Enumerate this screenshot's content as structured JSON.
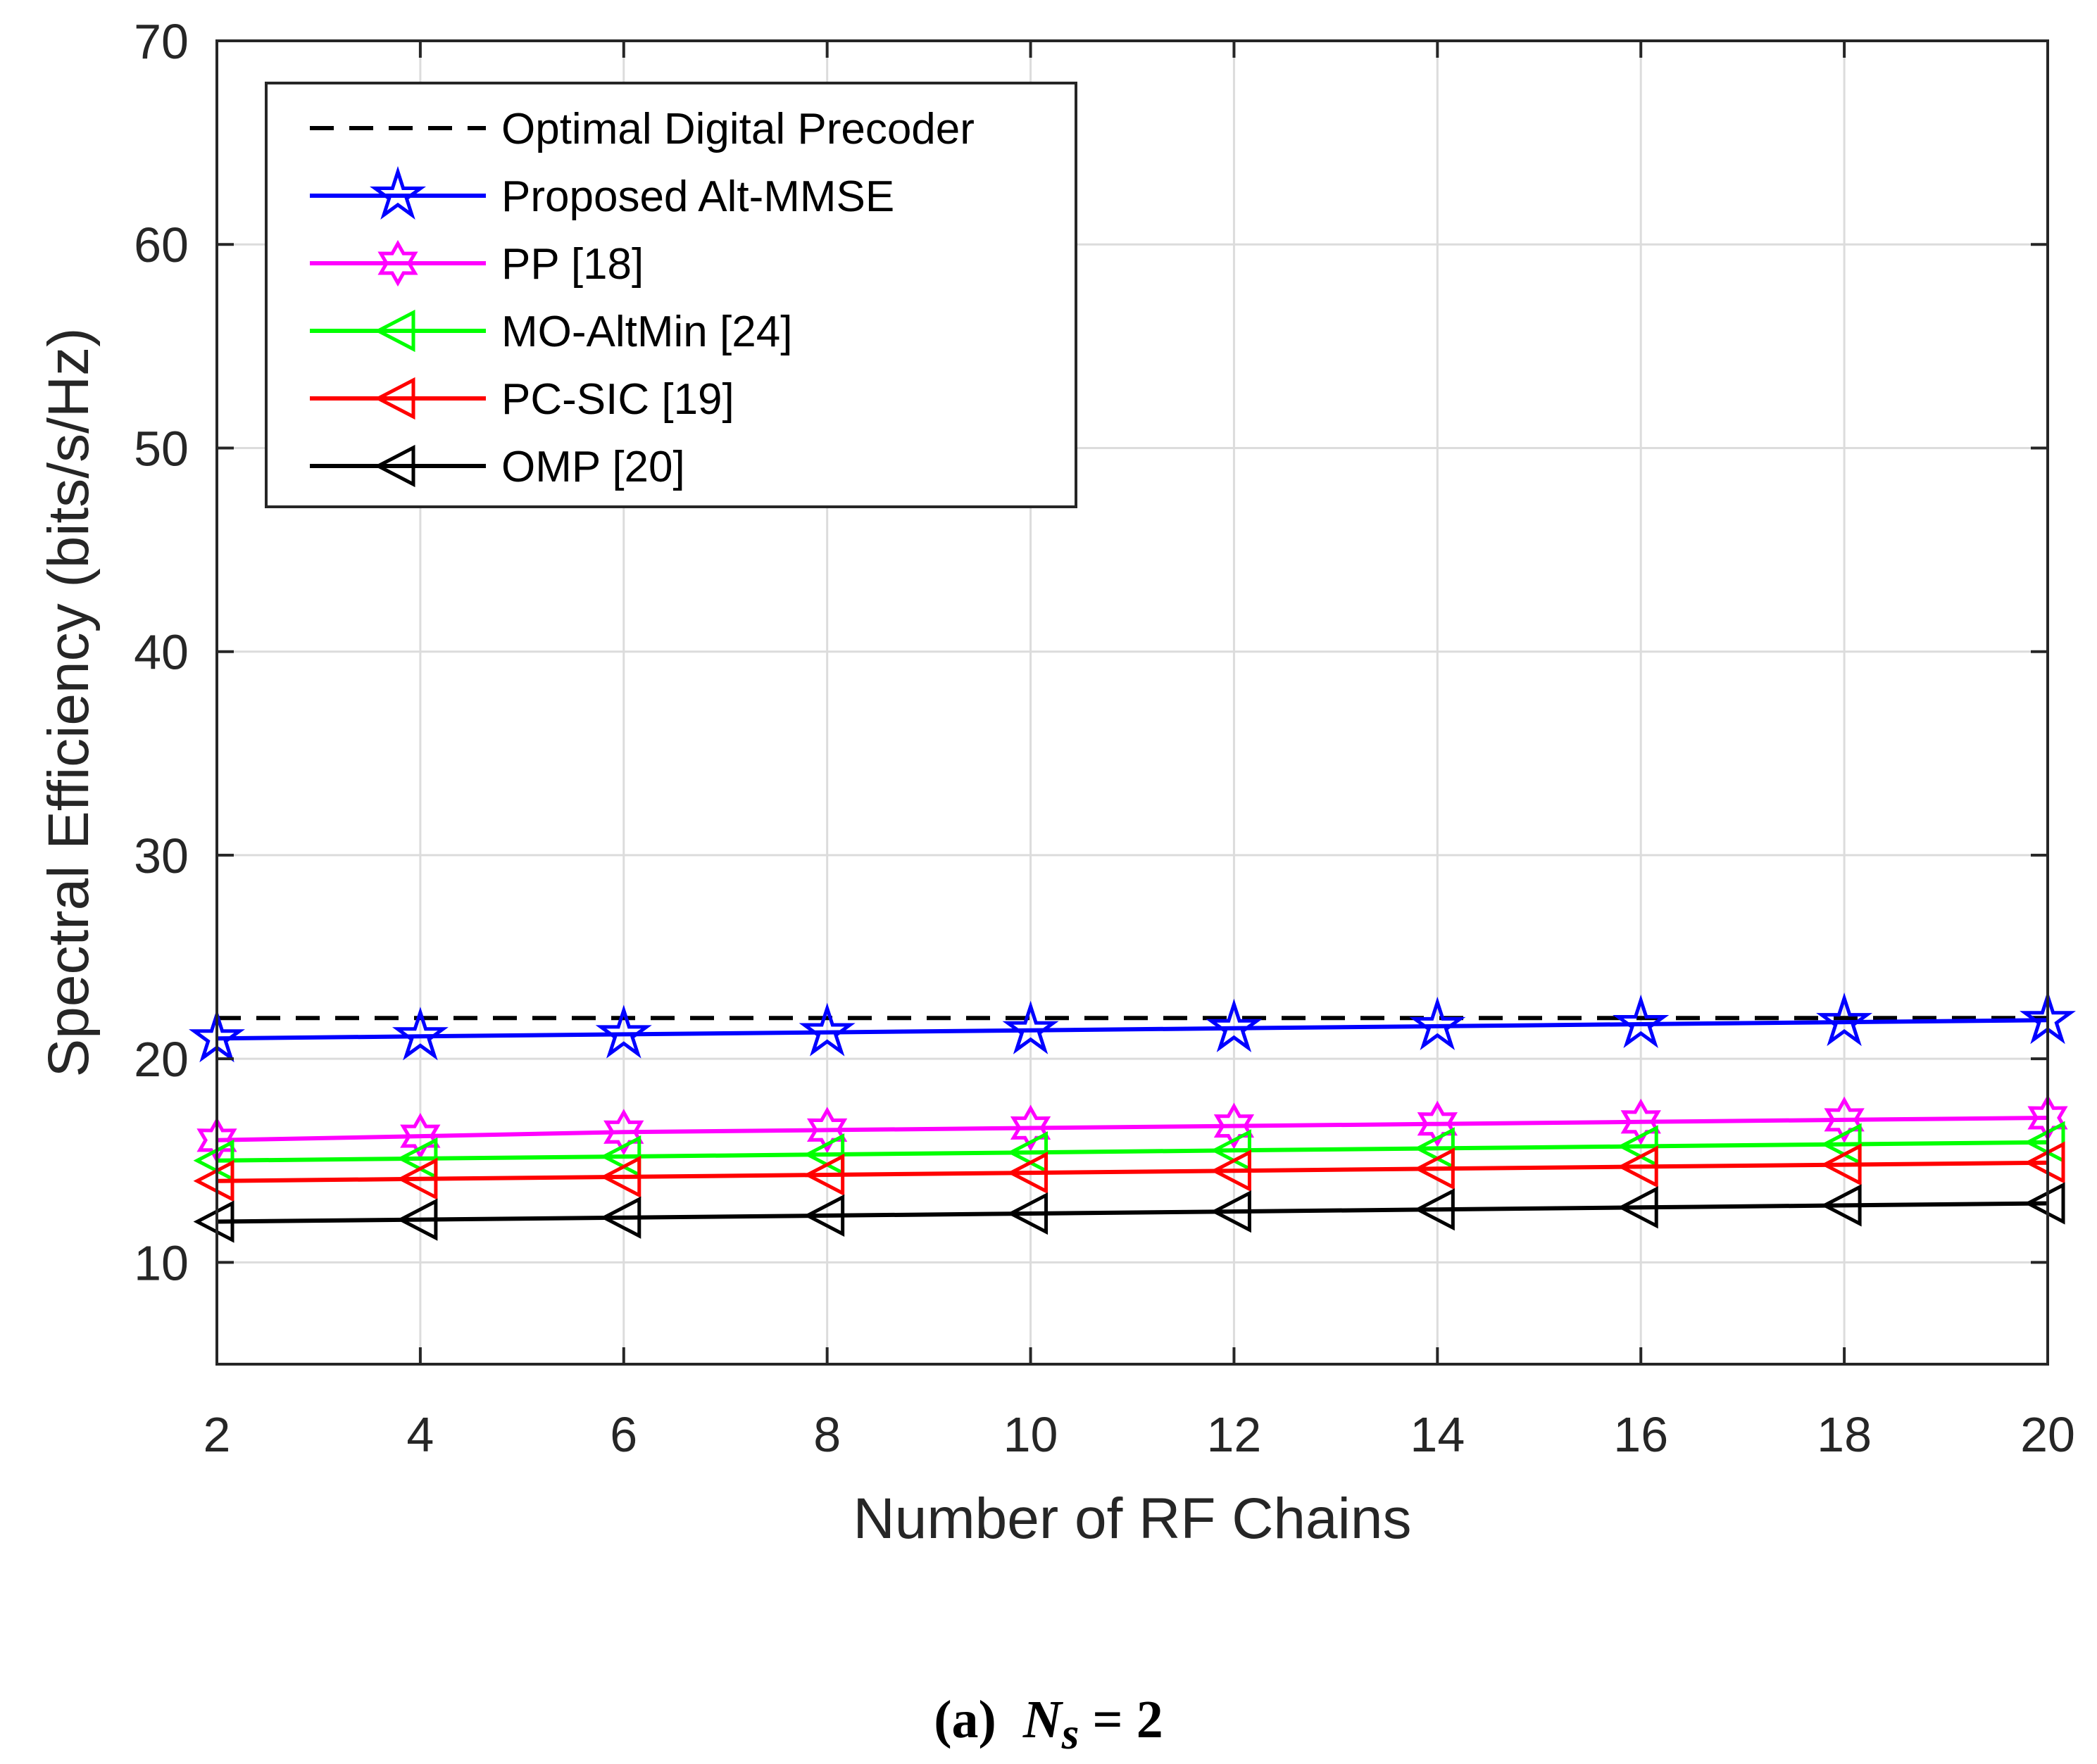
{
  "chart_data": {
    "type": "line",
    "xlabel": "Number of RF Chains",
    "ylabel": "Spectral Efficiency (bits/s/Hz)",
    "xlim": [
      2,
      20
    ],
    "ylim": [
      5,
      70
    ],
    "xticks": [
      2,
      4,
      6,
      8,
      10,
      12,
      14,
      16,
      18,
      20
    ],
    "yticks": [
      10,
      20,
      30,
      40,
      50,
      60,
      70
    ],
    "grid": true,
    "legend_position": "top-left",
    "x": [
      2,
      4,
      6,
      8,
      10,
      12,
      14,
      16,
      18,
      20
    ],
    "series": [
      {
        "name": "Optimal Digital Precoder",
        "color": "#000000",
        "style": "dashed",
        "marker": "none",
        "values": [
          22,
          22,
          22,
          22,
          22,
          22,
          22,
          22,
          22,
          22
        ]
      },
      {
        "name": "Proposed Alt-MMSE",
        "color": "#0000ff",
        "style": "solid",
        "marker": "pentagram",
        "values": [
          21.0,
          21.1,
          21.2,
          21.3,
          21.4,
          21.5,
          21.6,
          21.7,
          21.8,
          21.9
        ]
      },
      {
        "name": "PP [18]",
        "color": "#ff00ff",
        "style": "solid",
        "marker": "hexagram",
        "values": [
          16.0,
          16.2,
          16.4,
          16.5,
          16.6,
          16.7,
          16.8,
          16.9,
          17.0,
          17.1
        ]
      },
      {
        "name": "MO-AltMin [24]",
        "color": "#00ff00",
        "style": "solid",
        "marker": "triangle-left",
        "values": [
          15.0,
          15.1,
          15.2,
          15.3,
          15.4,
          15.5,
          15.6,
          15.7,
          15.8,
          15.9
        ]
      },
      {
        "name": "PC-SIC [19]",
        "color": "#ff0000",
        "style": "solid",
        "marker": "triangle-left",
        "values": [
          14.0,
          14.1,
          14.2,
          14.3,
          14.4,
          14.5,
          14.6,
          14.7,
          14.8,
          14.9
        ]
      },
      {
        "name": "OMP [20]",
        "color": "#000000",
        "style": "solid",
        "marker": "triangle-left",
        "values": [
          12.0,
          12.1,
          12.2,
          12.3,
          12.4,
          12.5,
          12.6,
          12.7,
          12.8,
          12.9
        ]
      }
    ]
  },
  "caption": {
    "label": "(a)",
    "symbol": "N",
    "subscript": "s",
    "equation_rhs": "= 2"
  }
}
